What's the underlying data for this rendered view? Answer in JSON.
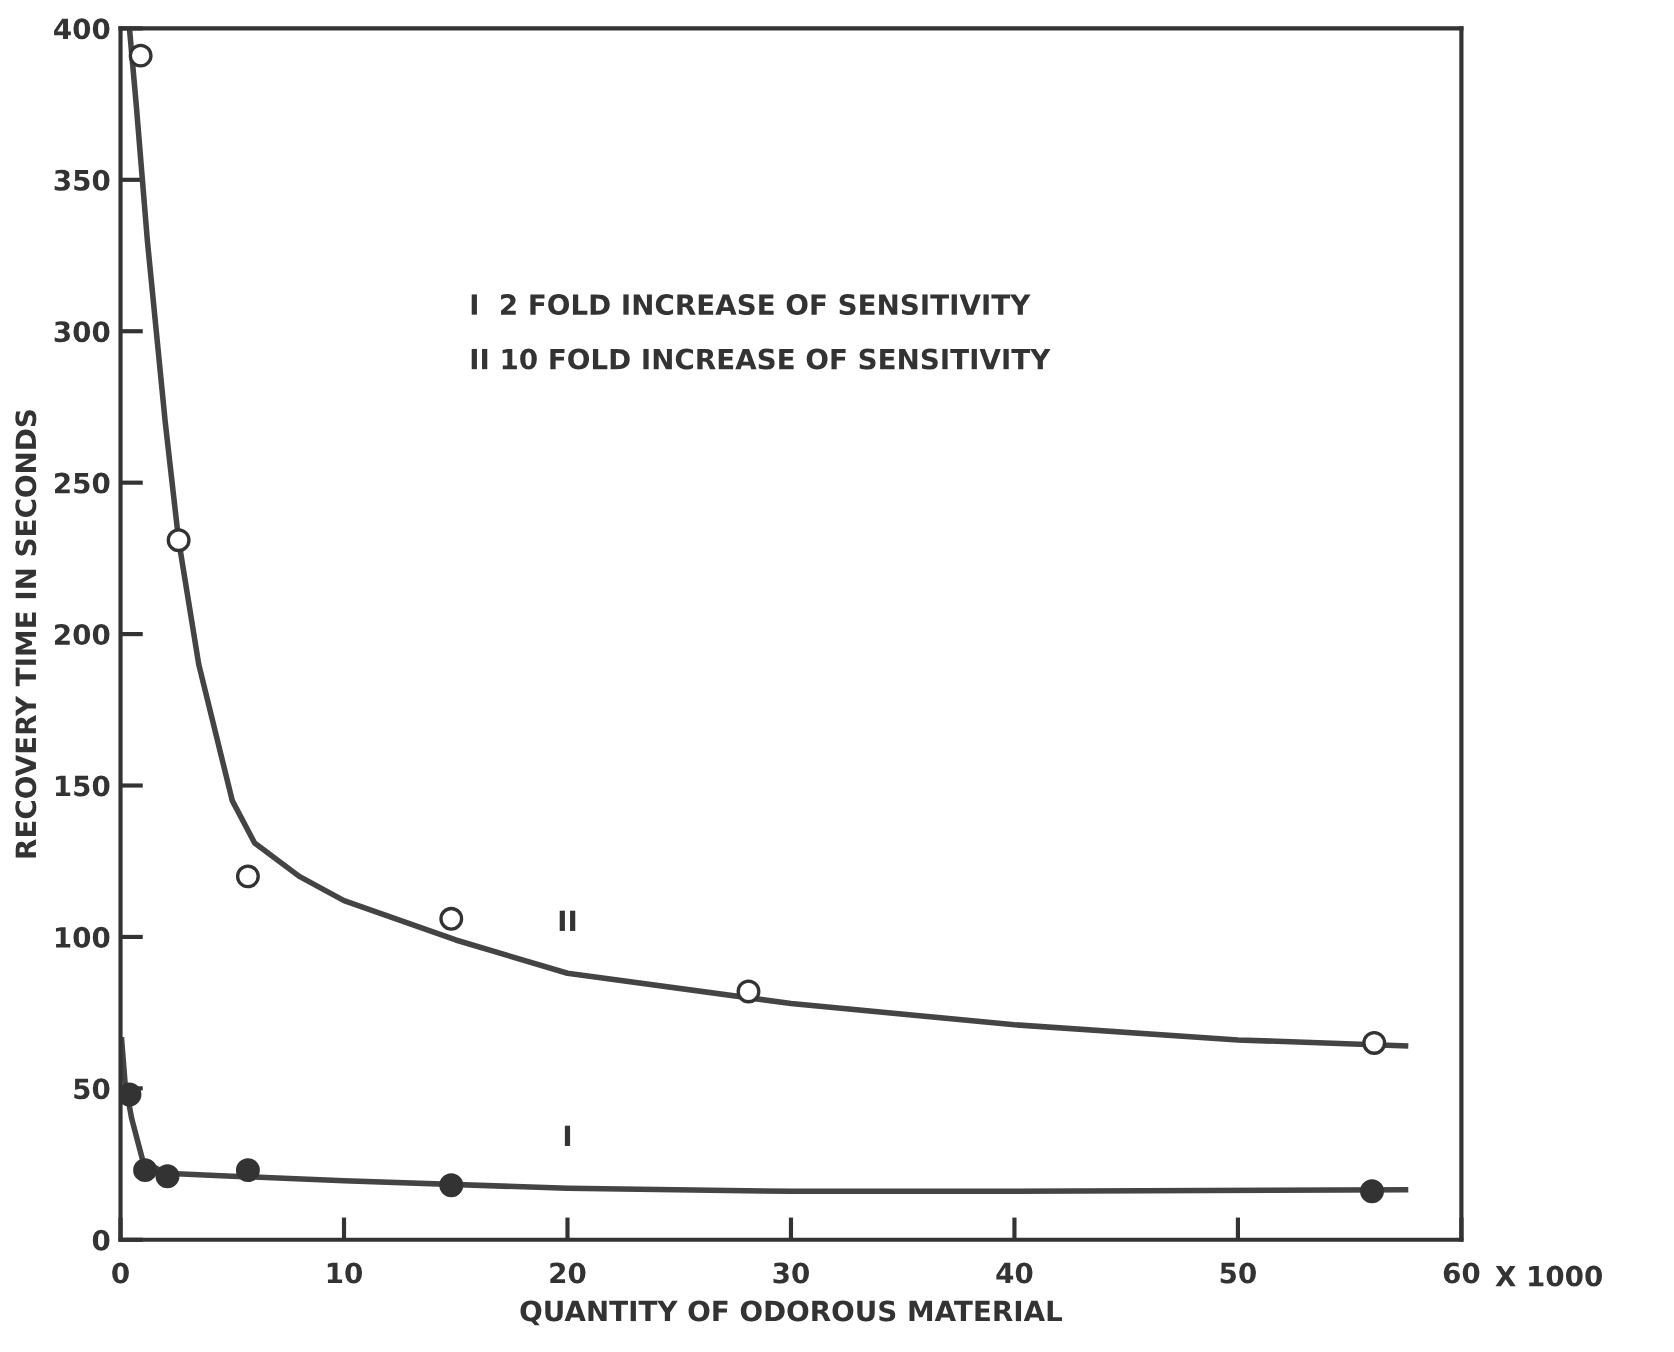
{
  "chart_data": {
    "type": "scatter",
    "xlabel": "QUANTITY OF ODOROUS MATERIAL",
    "ylabel": "RECOVERY TIME IN SECONDS",
    "xlim": [
      0,
      60
    ],
    "ylim": [
      0,
      400
    ],
    "xticks": [
      0,
      10,
      20,
      30,
      40,
      50,
      60
    ],
    "yticks": [
      0,
      50,
      100,
      150,
      200,
      250,
      300,
      350,
      400
    ],
    "grid": false,
    "legend": false,
    "series": [
      {
        "marker": "circle",
        "color": "#ffffff",
        "x": [
          0.9,
          2.6,
          5.7,
          14.8,
          28.1,
          56.1
        ],
        "values": [
          391,
          231,
          120,
          106,
          82,
          65
        ]
      },
      {
        "marker": "circle",
        "color": "#333333",
        "x": [
          0.4,
          1.1,
          2.1,
          5.7,
          14.8,
          56
        ],
        "values": [
          48,
          23,
          21,
          23,
          18,
          16
        ]
      },
      {
        "type": "line",
        "name": "II",
        "marker": "none",
        "color": "#444444",
        "x": [
          0.4,
          0.7,
          1.2,
          2,
          2.6,
          3.5,
          5,
          6,
          8,
          10,
          15,
          20,
          30,
          40,
          50,
          57.5
        ],
        "values": [
          400,
          375,
          330,
          270,
          231,
          190,
          145,
          131,
          120,
          112,
          99,
          88,
          78,
          71,
          66,
          64
        ]
      },
      {
        "type": "line",
        "name": "I",
        "marker": "none",
        "color": "#444444",
        "x": [
          0.05,
          0.2,
          0.5,
          1,
          2,
          5,
          10,
          20,
          30,
          40,
          57.5
        ],
        "values": [
          66,
          52,
          40,
          26,
          22,
          21,
          19.5,
          17,
          16,
          16,
          16.5
        ]
      }
    ],
    "annotations": [
      "I  2 FOLD INCREASE OF SENSITIVITY",
      "II 10 FOLD INCREASE OF SENSITIVITY",
      "X 1000"
    ]
  }
}
